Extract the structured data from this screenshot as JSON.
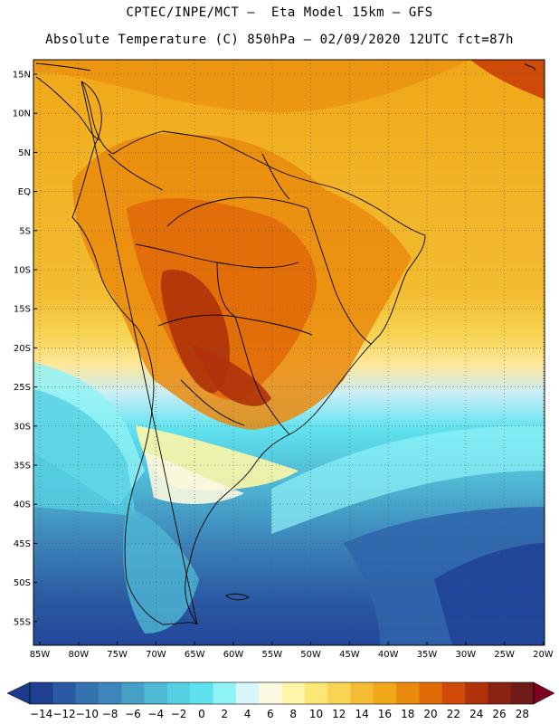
{
  "header": {
    "line1": "CPTEC/INPE/MCT –  Eta Model 15km – GFS",
    "line2": "Absolute Temperature (C) 850hPa – 02/09/2020 12UTC fct=87h"
  },
  "map": {
    "lat_labels": [
      "15N",
      "10N",
      "5N",
      "EQ",
      "5S",
      "10S",
      "15S",
      "20S",
      "25S",
      "30S",
      "35S",
      "40S",
      "45S",
      "50S",
      "55S"
    ],
    "lon_labels": [
      "85W",
      "80W",
      "75W",
      "70W",
      "65W",
      "60W",
      "55W",
      "50W",
      "45W",
      "40W",
      "35W",
      "30W",
      "25W",
      "20W"
    ],
    "gridlines": "dotted"
  },
  "colorbar": {
    "labels": [
      "-14",
      "-12",
      "-10",
      "-8",
      "-6",
      "-4",
      "-2",
      "0",
      "2",
      "4",
      "6",
      "8",
      "10",
      "12",
      "14",
      "16",
      "18",
      "20",
      "22",
      "24",
      "26",
      "28"
    ],
    "colors": [
      "#1f3f8f",
      "#2a5aa2",
      "#3472b0",
      "#3d86bb",
      "#46a0c6",
      "#4fb8d4",
      "#55cfe2",
      "#60e2ee",
      "#8ff2f6",
      "#d6f6fb",
      "#fbf8e0",
      "#fdf6a8",
      "#fbe676",
      "#f8d452",
      "#f3bc32",
      "#f0a818",
      "#ea8a0c",
      "#e06a08",
      "#cf4a08",
      "#b0320a",
      "#8a2410",
      "#701a18"
    ],
    "accent_under": "#1e3a8a",
    "accent_over": "#800020"
  }
}
